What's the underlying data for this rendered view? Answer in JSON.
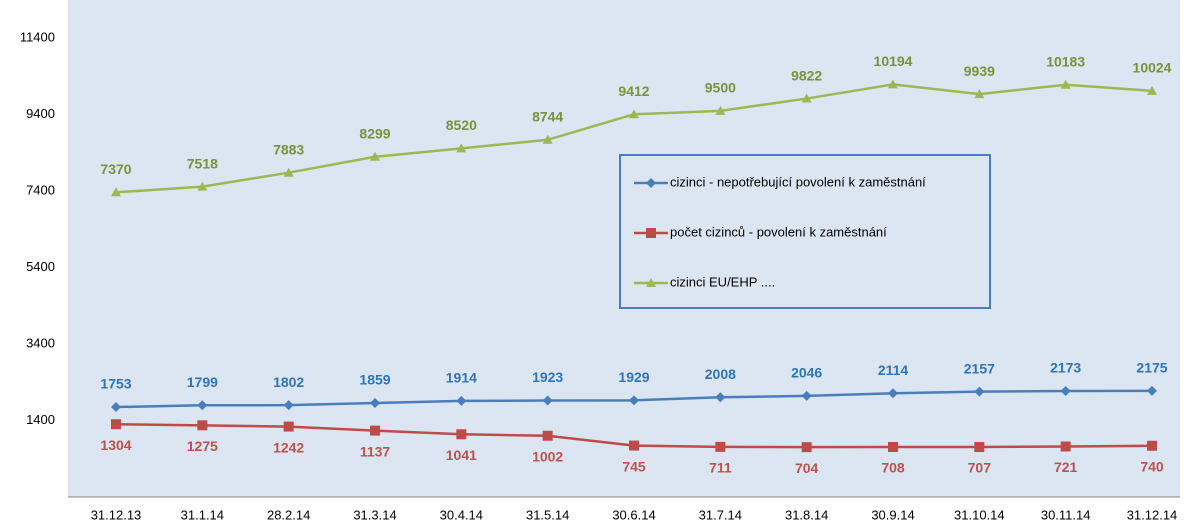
{
  "chart_data": {
    "type": "line",
    "categories": [
      "31.12.13",
      "31.1.14",
      "28.2.14",
      "31.3.14",
      "30.4.14",
      "31.5.14",
      "30.6.14",
      "31.7.14",
      "31.8.14",
      "30.9.14",
      "31.10.14",
      "30.11.14",
      "31.12.14"
    ],
    "series": [
      {
        "name": "cizinci - nepotřebující povolení k zaměstnání",
        "color": "#4a7ebb",
        "label_color": "#2e75b6",
        "marker": "diamond",
        "label_position": "above",
        "values": [
          1753,
          1799,
          1802,
          1859,
          1914,
          1923,
          1929,
          2008,
          2046,
          2114,
          2157,
          2173,
          2175
        ]
      },
      {
        "name": "počet cizinců - povolení k zaměstnání",
        "color": "#be4b48",
        "label_color": "#c0504d",
        "marker": "square",
        "label_position": "below",
        "values": [
          1304,
          1275,
          1242,
          1137,
          1041,
          1002,
          745,
          711,
          704,
          708,
          707,
          721,
          740
        ]
      },
      {
        "name": "cizinci EU/EHP ....",
        "color": "#98b954",
        "label_color": "#77933c",
        "marker": "triangle",
        "label_position": "above",
        "values": [
          7370,
          7518,
          7883,
          8299,
          8520,
          8744,
          9412,
          9500,
          9822,
          10194,
          9939,
          10183,
          10024
        ]
      }
    ],
    "ylim": [
      -600,
      12400
    ],
    "yticks": [
      1400,
      3400,
      5400,
      7400,
      9400,
      11400
    ],
    "grid": false,
    "legend": "center",
    "plot_background": "#dce6f2"
  }
}
